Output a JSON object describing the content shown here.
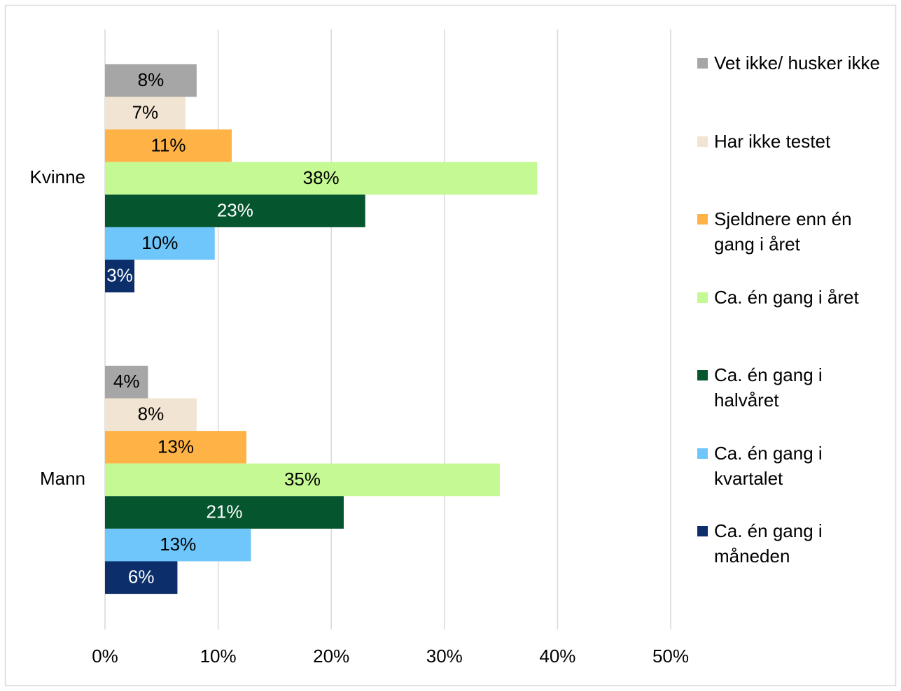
{
  "chart_data": {
    "type": "bar",
    "orientation": "horizontal",
    "categories": [
      "Kvinne",
      "Mann"
    ],
    "series": [
      {
        "name": "Vet ikke/ husker ikke",
        "color": "#a6a6a6",
        "values": [
          8.1,
          3.8
        ],
        "value_labels": [
          "8%",
          "4%"
        ]
      },
      {
        "name": "Har ikke testet",
        "color": "#f2e4d2",
        "values": [
          7.1,
          8.1
        ],
        "value_labels": [
          "7%",
          "8%"
        ]
      },
      {
        "name": "Sjeldnere enn én gang i året",
        "color": "#ffb347",
        "values": [
          11.2,
          12.5
        ],
        "value_labels": [
          "11%",
          "13%"
        ]
      },
      {
        "name": "Ca. én gang i året",
        "color": "#c4f993",
        "values": [
          38.2,
          34.9
        ],
        "value_labels": [
          "38%",
          "35%"
        ]
      },
      {
        "name": "Ca. én gang i halvåret",
        "color": "#05562e",
        "values": [
          23.0,
          21.1
        ],
        "value_labels": [
          "23%",
          "21%"
        ]
      },
      {
        "name": "Ca. én gang i kvartalet",
        "color": "#6ec6fb",
        "values": [
          9.7,
          12.9
        ],
        "value_labels": [
          "10%",
          "13%"
        ]
      },
      {
        "name": "Ca. én gang i måneden",
        "color": "#0c2f6b",
        "values": [
          2.6,
          6.4
        ],
        "value_labels": [
          "3%",
          "6%"
        ]
      }
    ],
    "xlim": [
      0,
      50
    ],
    "xticks": [
      {
        "value": 0,
        "label": "0%"
      },
      {
        "value": 10,
        "label": "10%"
      },
      {
        "value": 20,
        "label": "20%"
      },
      {
        "value": 30,
        "label": "30%"
      },
      {
        "value": 40,
        "label": "40%"
      },
      {
        "value": 50,
        "label": "50%"
      }
    ],
    "grid": true,
    "legend": "right"
  }
}
